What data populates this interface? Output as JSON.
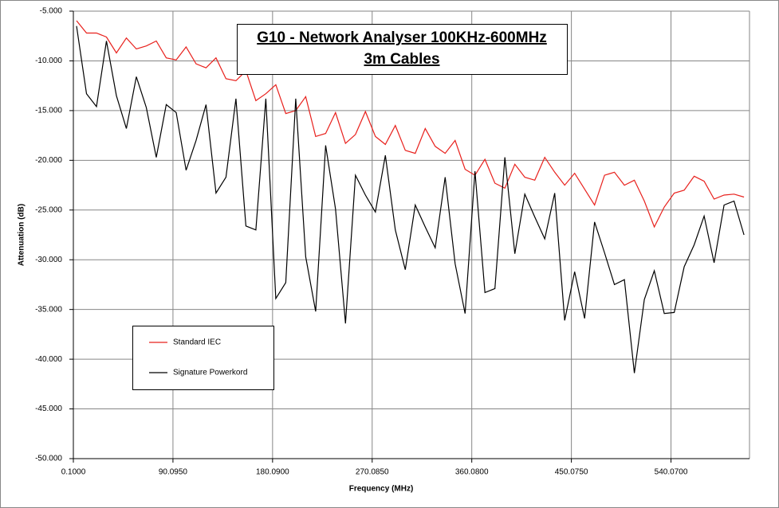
{
  "chart_data": {
    "type": "line",
    "title": "G10 - Network Analyser 100KHz-600MHz",
    "subtitle": "3m Cables",
    "x_label": "Frequency (MHz)",
    "y_label": "Attenuation (dB)",
    "x": [
      3,
      12,
      21,
      30,
      39,
      48,
      57,
      66,
      75,
      84,
      93,
      102,
      111,
      120,
      129,
      138,
      147,
      156,
      165,
      174,
      183,
      192,
      201,
      210,
      219,
      228,
      237,
      246,
      255,
      264,
      273,
      282,
      291,
      300,
      309,
      318,
      327,
      336,
      345,
      354,
      363,
      372,
      381,
      390,
      399,
      408,
      417,
      426,
      435,
      444,
      453,
      462,
      471,
      480,
      489,
      498,
      507,
      516,
      525,
      534,
      543,
      552,
      561,
      570,
      579,
      588,
      597,
      606
    ],
    "series": [
      {
        "name": "Standard IEC",
        "color": "#e8201c",
        "values": [
          -5.96,
          -7.2,
          -7.2,
          -7.6,
          -9.2,
          -7.7,
          -8.8,
          -8.5,
          -8.0,
          -9.7,
          -9.9,
          -8.6,
          -10.3,
          -10.7,
          -9.7,
          -11.8,
          -12.0,
          -11.0,
          -14.0,
          -13.3,
          -12.4,
          -15.3,
          -15.0,
          -13.6,
          -17.6,
          -17.3,
          -15.2,
          -18.3,
          -17.4,
          -15.1,
          -17.6,
          -18.4,
          -16.5,
          -19.0,
          -19.3,
          -16.8,
          -18.6,
          -19.3,
          -18.0,
          -20.9,
          -21.5,
          -19.9,
          -22.3,
          -22.8,
          -20.4,
          -21.7,
          -22.0,
          -19.7,
          -21.2,
          -22.5,
          -21.3,
          -22.9,
          -24.5,
          -21.5,
          -21.2,
          -22.5,
          -22.0,
          -24.1,
          -26.7,
          -24.7,
          -23.3,
          -23.0,
          -21.6,
          -22.1,
          -23.9,
          -23.5,
          -23.4,
          -23.7
        ]
      },
      {
        "name": "Signature Powerkord",
        "color": "#000000",
        "values": [
          -6.5,
          -13.3,
          -14.6,
          -8.0,
          -13.5,
          -16.8,
          -11.6,
          -14.7,
          -19.7,
          -14.4,
          -15.2,
          -21.0,
          -18.0,
          -14.4,
          -23.3,
          -21.7,
          -13.8,
          -26.6,
          -27.0,
          -13.8,
          -33.9,
          -32.3,
          -13.8,
          -29.7,
          -35.2,
          -18.5,
          -24.9,
          -36.4,
          -21.5,
          -23.5,
          -25.2,
          -19.5,
          -27.0,
          -31.0,
          -24.5,
          -26.7,
          -28.8,
          -21.7,
          -30.4,
          -35.4,
          -21.1,
          -33.3,
          -32.9,
          -19.7,
          -29.4,
          -23.4,
          -25.7,
          -27.9,
          -23.3,
          -36.1,
          -31.2,
          -35.9,
          -26.2,
          -29.3,
          -32.5,
          -32.0,
          -41.4,
          -34.0,
          -31.1,
          -35.4,
          -35.3,
          -30.7,
          -28.5,
          -25.6,
          -30.3,
          -24.5,
          -24.1,
          -27.5
        ]
      }
    ],
    "xlim": [
      0.1,
      611
    ],
    "xticks": [
      {
        "value": 0.1,
        "label": "0.1000"
      },
      {
        "value": 90.095,
        "label": "90.0950"
      },
      {
        "value": 180.09,
        "label": "180.0900"
      },
      {
        "value": 270.085,
        "label": "270.0850"
      },
      {
        "value": 360.08,
        "label": "360.0800"
      },
      {
        "value": 450.075,
        "label": "450.0750"
      },
      {
        "value": 540.07,
        "label": "540.0700"
      }
    ],
    "ylim": [
      -50,
      -5
    ],
    "yticks": [
      {
        "value": -5,
        "label": "-5.000"
      },
      {
        "value": -10,
        "label": "-10.000"
      },
      {
        "value": -15,
        "label": "-15.000"
      },
      {
        "value": -20,
        "label": "-20.000"
      },
      {
        "value": -25,
        "label": "-25.000"
      },
      {
        "value": -30,
        "label": "-30.000"
      },
      {
        "value": -35,
        "label": "-35.000"
      },
      {
        "value": -40,
        "label": "-40.000"
      },
      {
        "value": -45,
        "label": "-45.000"
      },
      {
        "value": -50,
        "label": "-50.000"
      }
    ],
    "grid": true
  }
}
